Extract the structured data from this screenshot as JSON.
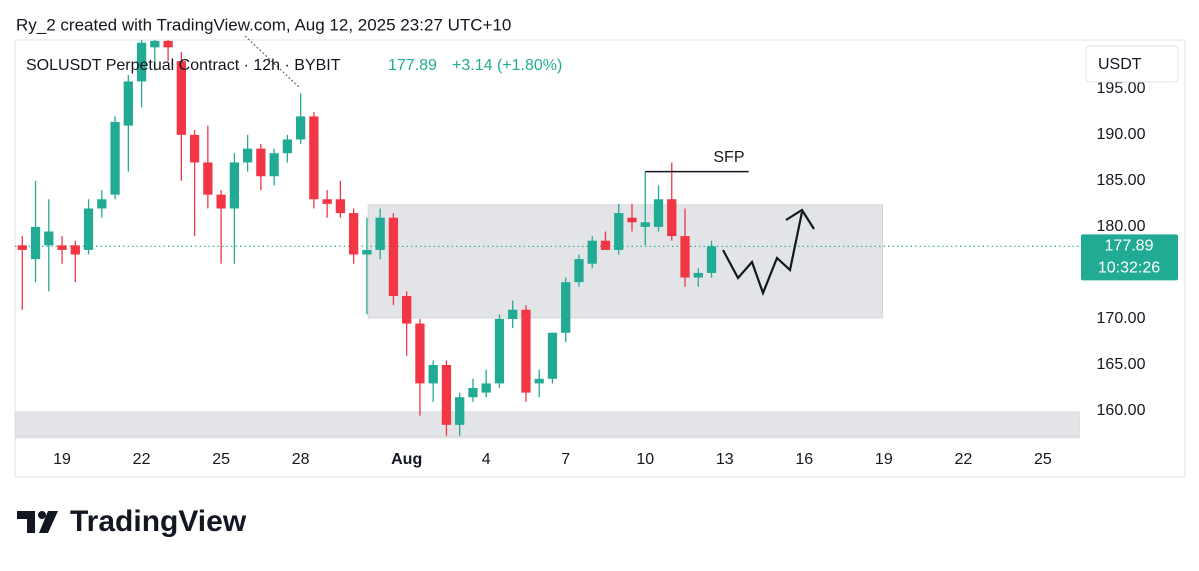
{
  "header": "Ry_2 created with TradingView.com, Aug 12, 2025 23:27 UTC+10",
  "brand": "TradingView",
  "chart_data": {
    "type": "candlestick",
    "title": "SOLUSDT Perpetual Contract · 12h · BYBIT",
    "price": "177.89",
    "change": "+3.14 (+1.80%)",
    "currency": "USDT",
    "up_color": "#22ab94",
    "down_color": "#f23645",
    "last_price": {
      "value": 177.89,
      "label": "177.89",
      "countdown": "10:32:26"
    },
    "xlim": [
      -3.55,
      76.8
    ],
    "ylim": [
      157.07,
      200.3
    ],
    "xticks": [
      {
        "value": 0,
        "label": "19"
      },
      {
        "value": 6,
        "label": "22"
      },
      {
        "value": 12,
        "label": "25"
      },
      {
        "value": 18,
        "label": "28"
      },
      {
        "value": 26,
        "label": "Aug"
      },
      {
        "value": 32,
        "label": "4"
      },
      {
        "value": 38,
        "label": "7"
      },
      {
        "value": 44,
        "label": "10"
      },
      {
        "value": 50,
        "label": "13"
      },
      {
        "value": 56,
        "label": "16"
      },
      {
        "value": 62,
        "label": "19"
      },
      {
        "value": 68,
        "label": "22"
      },
      {
        "value": 74,
        "label": "25"
      }
    ],
    "yticks": [
      {
        "value": 160,
        "label": "160.00"
      },
      {
        "value": 165,
        "label": "165.00"
      },
      {
        "value": 170,
        "label": "170.00"
      },
      {
        "value": 175,
        "label": "175.00"
      },
      {
        "value": 180,
        "label": "180.00"
      },
      {
        "value": 185,
        "label": "185.00"
      },
      {
        "value": 190,
        "label": "190.00"
      },
      {
        "value": 195,
        "label": "195.00"
      }
    ],
    "candles": {
      "x": [
        -3,
        -2,
        -1,
        0,
        1,
        2,
        3,
        4,
        5,
        6,
        7,
        8,
        9,
        10,
        11,
        12,
        13,
        14,
        15,
        16,
        17,
        18,
        19,
        20,
        21,
        22,
        23,
        24,
        25,
        26,
        27,
        28,
        29,
        30,
        31,
        32,
        33,
        34,
        35,
        36,
        37,
        38,
        39,
        40,
        41,
        42,
        43,
        44,
        45,
        46,
        47,
        48,
        49
      ],
      "open": [
        178,
        176.5,
        178,
        178,
        178,
        177.5,
        182,
        183.5,
        191,
        195.8,
        199.5,
        200.2,
        198,
        190,
        187,
        183.5,
        182,
        187,
        188.5,
        185.5,
        188,
        189.5,
        192,
        183,
        183,
        181.5,
        177,
        177.5,
        181,
        172.5,
        169.5,
        163,
        165,
        158.5,
        161.5,
        162,
        163,
        170,
        171,
        163,
        163.5,
        168.5,
        174,
        176,
        178.5,
        177.5,
        181,
        180,
        180,
        183,
        179,
        174.5,
        175
      ],
      "high": [
        179,
        185,
        183,
        179,
        178.5,
        183,
        184,
        192,
        196.5,
        200.5,
        201,
        201,
        199,
        190.5,
        191,
        184,
        188,
        190,
        189,
        188.5,
        190,
        194.5,
        192.5,
        184,
        185,
        182,
        181,
        182,
        181.5,
        173,
        170,
        165.5,
        165.5,
        162,
        163.5,
        164.5,
        170.5,
        172,
        171.5,
        164.5,
        168.5,
        174.5,
        177,
        179,
        179.5,
        182.5,
        182.5,
        186,
        184.5,
        187,
        182,
        175.5,
        178.5
      ],
      "low": [
        171,
        174,
        173,
        176,
        174,
        177,
        181,
        183,
        186,
        193,
        197,
        198,
        185,
        179,
        182,
        176,
        176,
        186,
        184,
        184.5,
        187,
        189,
        182,
        181,
        181,
        176,
        170.5,
        176.5,
        171.5,
        166,
        159.5,
        161,
        157.3,
        157.3,
        161,
        161.5,
        162.5,
        169,
        161,
        161.5,
        163,
        167.5,
        173.5,
        175.5,
        177.5,
        177,
        179.5,
        178,
        179.5,
        178.5,
        173.5,
        173.5,
        174.5
      ],
      "close": [
        177.5,
        180,
        179.5,
        177.5,
        177,
        182,
        183,
        191.4,
        195.8,
        200,
        200.2,
        199.5,
        190,
        187,
        183.5,
        182,
        187,
        188.5,
        185.5,
        188,
        189.5,
        192,
        183,
        182.5,
        181.5,
        177,
        177.5,
        181,
        172.5,
        169.5,
        163,
        165,
        158.5,
        161.5,
        162.5,
        163,
        170,
        171,
        162,
        163.5,
        168.5,
        174,
        176.5,
        178.5,
        177.5,
        181.5,
        180.5,
        180.5,
        183,
        179,
        174.5,
        175,
        177.89
      ]
    },
    "zones": [
      {
        "x": [
          23.1,
          61.9
        ],
        "y": [
          170.1,
          182.4
        ]
      },
      {
        "x": [
          -3.55,
          76.8
        ],
        "y": [
          157.2,
          159.9
        ]
      }
    ],
    "annotation": {
      "text": "SFP",
      "y": 186,
      "x": [
        44,
        51.8
      ]
    }
  }
}
